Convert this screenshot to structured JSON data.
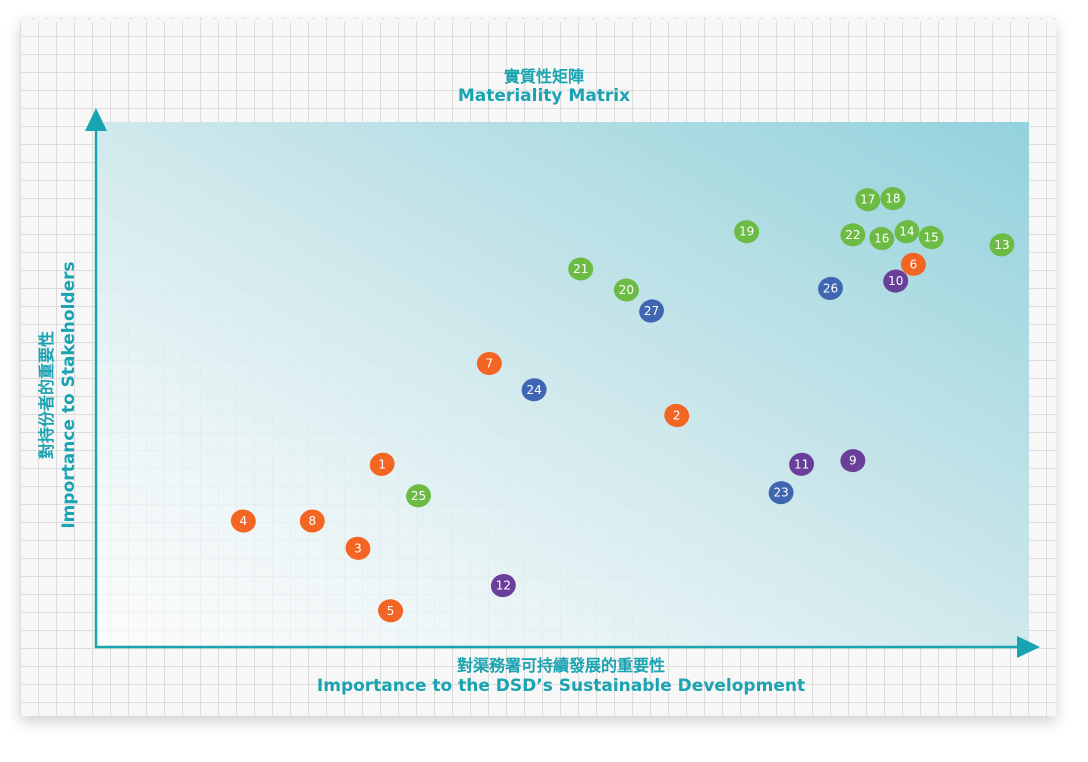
{
  "chart_data": {
    "type": "scatter",
    "title": "實質性矩陣",
    "subtitle": "Materiality Matrix",
    "xlabel": "對渠務署可持續發展的重要性",
    "xlabel_en": "Importance to the DSD’s Sustainable Development",
    "ylabel": "對持份者的重要性",
    "ylabel_en": "Importance to Stakeholders",
    "xlim": [
      0,
      100
    ],
    "ylim": [
      0,
      100
    ],
    "grid": false,
    "colors": {
      "orange": "#f26522",
      "green": "#6cbb45",
      "blue": "#3f66b0",
      "purple": "#6a3f99",
      "axis": "#1aa3b0"
    },
    "points": [
      {
        "label": "1",
        "x": 30.6,
        "y": 34.8,
        "color": "orange"
      },
      {
        "label": "2",
        "x": 62.2,
        "y": 44.1,
        "color": "orange"
      },
      {
        "label": "3",
        "x": 28.0,
        "y": 18.8,
        "color": "orange"
      },
      {
        "label": "4",
        "x": 15.7,
        "y": 24.0,
        "color": "orange"
      },
      {
        "label": "5",
        "x": 31.5,
        "y": 6.9,
        "color": "orange"
      },
      {
        "label": "6",
        "x": 87.6,
        "y": 72.9,
        "color": "orange"
      },
      {
        "label": "7",
        "x": 42.1,
        "y": 54.0,
        "color": "orange"
      },
      {
        "label": "8",
        "x": 23.1,
        "y": 24.0,
        "color": "orange"
      },
      {
        "label": "9",
        "x": 81.1,
        "y": 35.5,
        "color": "purple"
      },
      {
        "label": "10",
        "x": 85.7,
        "y": 69.7,
        "color": "purple"
      },
      {
        "label": "11",
        "x": 75.6,
        "y": 34.8,
        "color": "purple"
      },
      {
        "label": "12",
        "x": 43.6,
        "y": 11.7,
        "color": "purple"
      },
      {
        "label": "13",
        "x": 97.1,
        "y": 76.6,
        "color": "green"
      },
      {
        "label": "14",
        "x": 86.9,
        "y": 79.1,
        "color": "green"
      },
      {
        "label": "15",
        "x": 89.5,
        "y": 78.0,
        "color": "green"
      },
      {
        "label": "16",
        "x": 84.2,
        "y": 77.8,
        "color": "green"
      },
      {
        "label": "17",
        "x": 82.7,
        "y": 85.2,
        "color": "green"
      },
      {
        "label": "18",
        "x": 85.4,
        "y": 85.4,
        "color": "green"
      },
      {
        "label": "19",
        "x": 69.7,
        "y": 79.1,
        "color": "green"
      },
      {
        "label": "20",
        "x": 56.8,
        "y": 68.0,
        "color": "green"
      },
      {
        "label": "21",
        "x": 51.9,
        "y": 72.0,
        "color": "green"
      },
      {
        "label": "22",
        "x": 81.1,
        "y": 78.5,
        "color": "green"
      },
      {
        "label": "23",
        "x": 73.4,
        "y": 29.4,
        "color": "blue"
      },
      {
        "label": "24",
        "x": 46.9,
        "y": 49.0,
        "color": "blue"
      },
      {
        "label": "25",
        "x": 34.5,
        "y": 28.8,
        "color": "green"
      },
      {
        "label": "26",
        "x": 78.7,
        "y": 68.3,
        "color": "blue"
      },
      {
        "label": "27",
        "x": 59.5,
        "y": 64.0,
        "color": "blue"
      }
    ]
  }
}
